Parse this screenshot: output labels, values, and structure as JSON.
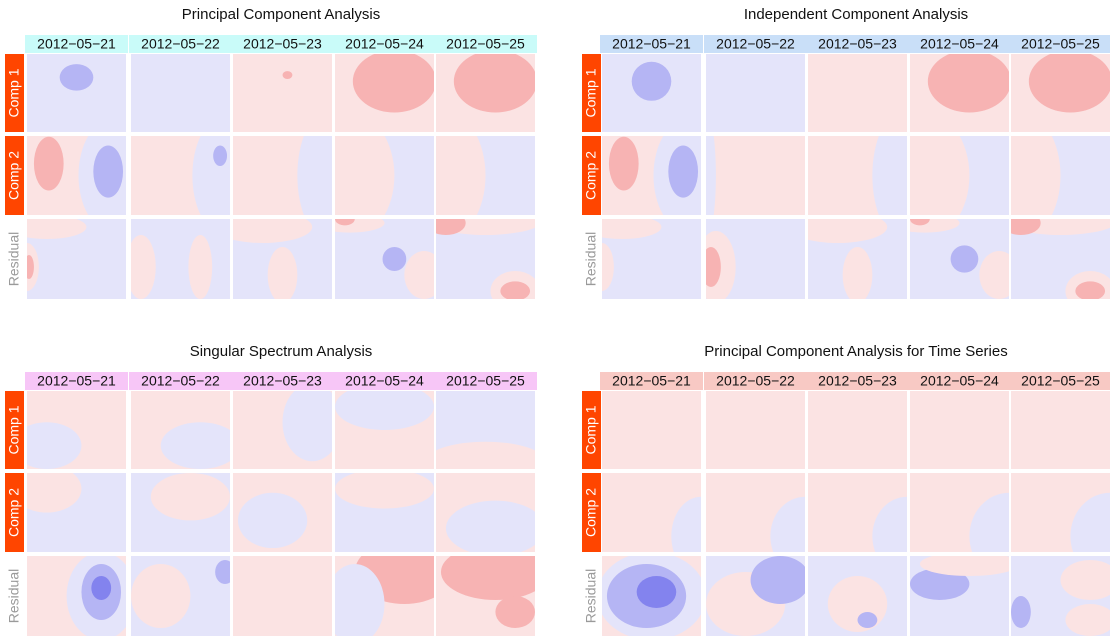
{
  "panels": [
    {
      "title": "Principal Component Analysis",
      "header_color": "#c9fbf9",
      "columns": [
        "2012−05−21",
        "2012−05−22",
        "2012−05−23",
        "2012−05−24",
        "2012−05−25"
      ],
      "rows": [
        "Comp 1",
        "Comp 2",
        "Residual"
      ]
    },
    {
      "title": "Independent Component Analysis",
      "header_color": "#c9dff8",
      "columns": [
        "2012−05−21",
        "2012−05−22",
        "2012−05−23",
        "2012−05−24",
        "2012−05−25"
      ],
      "rows": [
        "Comp 1",
        "Comp 2",
        "Residual"
      ]
    },
    {
      "title": "Singular Spectrum Analysis",
      "header_color": "#f7c6f7",
      "columns": [
        "2012−05−21",
        "2012−05−22",
        "2012−05−23",
        "2012−05−24",
        "2012−05−25"
      ],
      "rows": [
        "Comp 1",
        "Comp 2",
        "Residual"
      ]
    },
    {
      "title": "Principal Component Analysis for Time Series",
      "header_color": "#f8c9c4",
      "columns": [
        "2012−05−21",
        "2012−05−22",
        "2012−05−23",
        "2012−05−24",
        "2012−05−25"
      ],
      "rows": [
        "Comp 1",
        "Comp 2",
        "Residual"
      ]
    }
  ]
}
